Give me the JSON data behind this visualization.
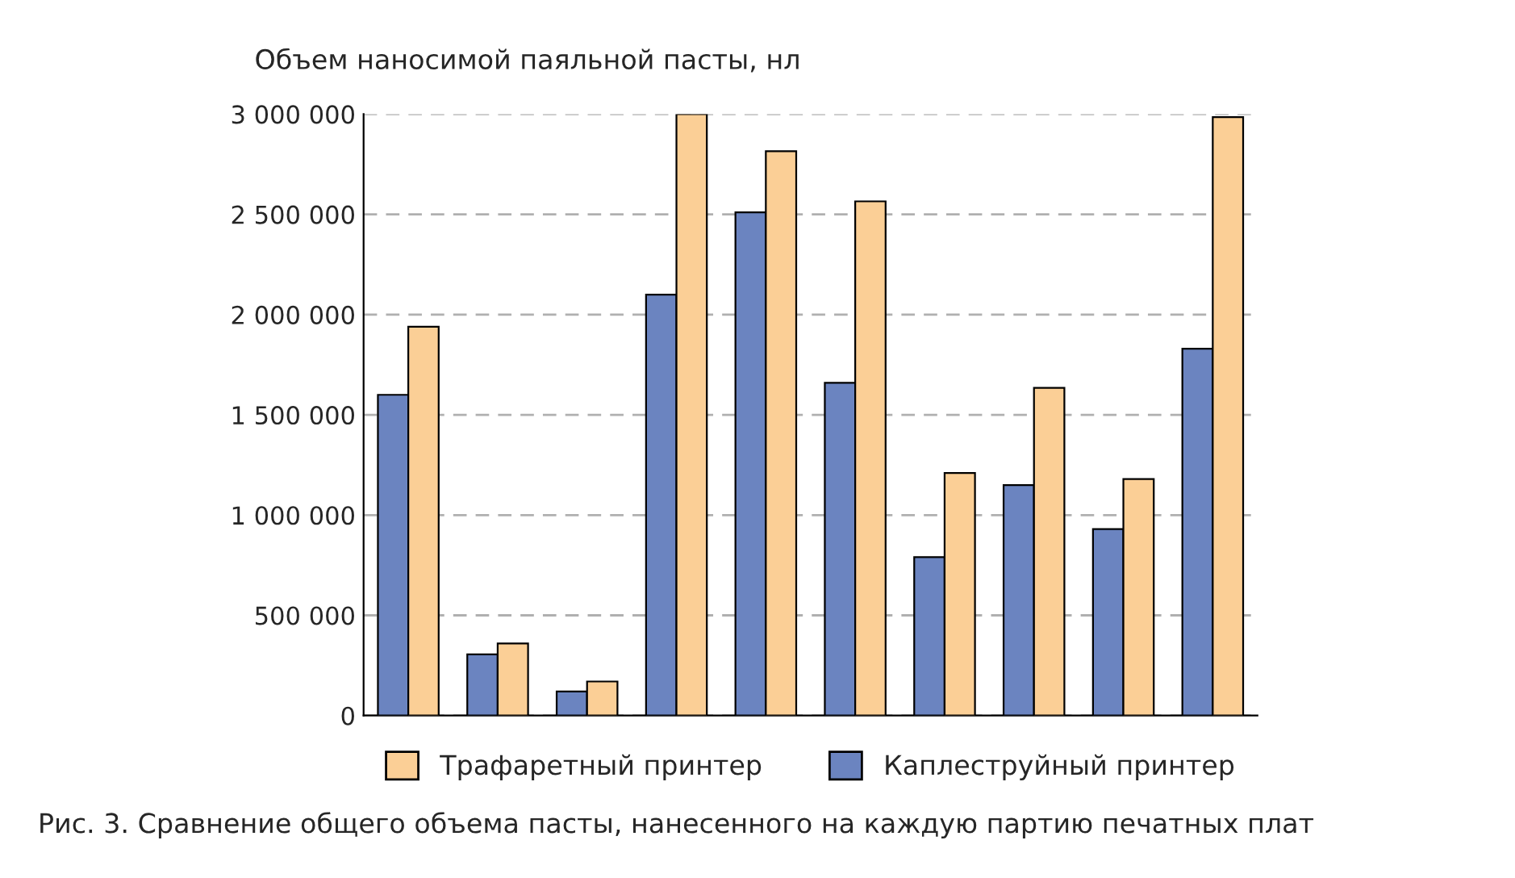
{
  "chart_data": {
    "type": "bar",
    "ylabel": "Объем наносимой паяльной пасты, нл",
    "categories": [
      null,
      null,
      null,
      null,
      null,
      null,
      null,
      null,
      null,
      null
    ],
    "series": [
      {
        "name": "Каплеструйный принтер",
        "color": "#6b84c0",
        "values": [
          1600000,
          305000,
          120000,
          2100000,
          2510000,
          1660000,
          790000,
          1150000,
          930000,
          1830000
        ]
      },
      {
        "name": "Трафаретный принтер",
        "color": "#fbcf96",
        "values": [
          1940000,
          360000,
          170000,
          3000000,
          2815000,
          2565000,
          1210000,
          1635000,
          1180000,
          2985000
        ]
      }
    ],
    "ylim": [
      0,
      3000000
    ],
    "yticks": [
      {
        "value": 0,
        "label": "0"
      },
      {
        "value": 500000,
        "label": "500 000"
      },
      {
        "value": 1000000,
        "label": "1 000 000"
      },
      {
        "value": 1500000,
        "label": "1 500 000"
      },
      {
        "value": 2000000,
        "label": "2 000 000"
      },
      {
        "value": 2500000,
        "label": "2 500 000"
      },
      {
        "value": 3000000,
        "label": "3 000 000"
      }
    ],
    "grid": "y",
    "legend": "bottom",
    "annotations": [
      "Рис. 3. Сравнение общего объема пасты, нанесенного на каждую партию печатных плат"
    ]
  }
}
